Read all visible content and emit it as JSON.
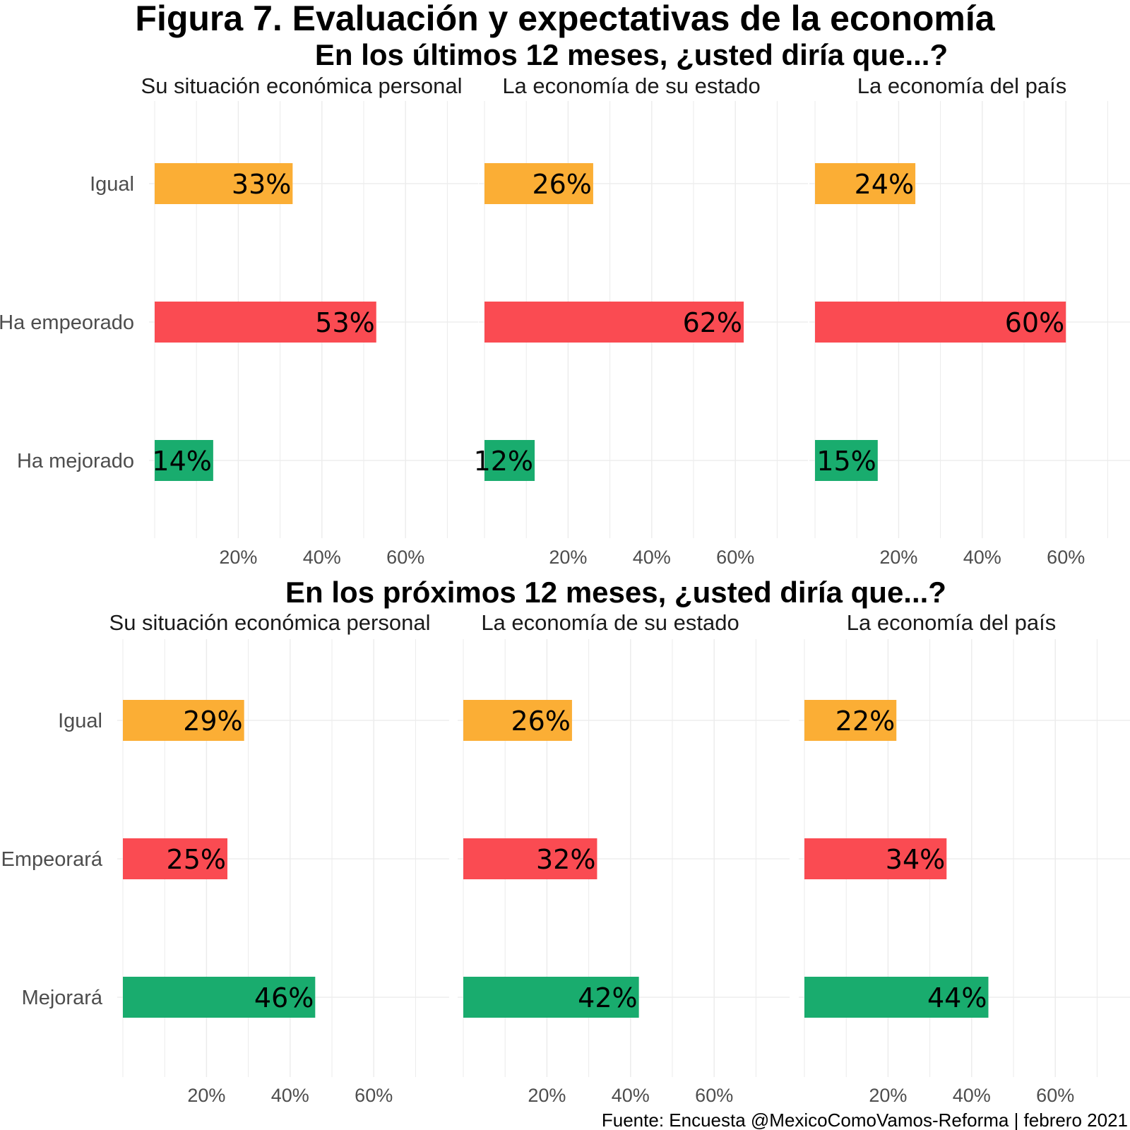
{
  "title": "Figura 7. Evaluación y expectativas de la economía",
  "caption": "Fuente: Encuesta @MexicoComoVamos-Reforma | febrero 2021",
  "colors": {
    "Igual": "#FBAE35",
    "empeora": "#FA4B52",
    "mejora": "#19AC6E",
    "grid": "#ebebeb"
  },
  "chart_data": [
    {
      "type": "bar",
      "orientation": "horizontal",
      "subtitle": "En los últimos 12 meses, ¿usted diría que...?",
      "categories": [
        "Igual",
        "Ha empeorado",
        "Ha mejorado"
      ],
      "xlim": [
        0,
        75
      ],
      "x_ticks": [
        "20%",
        "40%",
        "60%"
      ],
      "grid": true,
      "panels": [
        {
          "name": "Su situación económica personal",
          "values": [
            33,
            53,
            14
          ],
          "labels": [
            "33%",
            "53%",
            "14%"
          ]
        },
        {
          "name": "La economía de su estado",
          "values": [
            26,
            62,
            12
          ],
          "labels": [
            "26%",
            "62%",
            "12%"
          ]
        },
        {
          "name": "La economía del país",
          "values": [
            24,
            60,
            15
          ],
          "labels": [
            "24%",
            "60%",
            "15%"
          ]
        }
      ]
    },
    {
      "type": "bar",
      "orientation": "horizontal",
      "subtitle": "En los próximos 12 meses, ¿usted diría que...?",
      "categories": [
        "Igual",
        "Empeorará",
        "Mejorará"
      ],
      "xlim": [
        0,
        75
      ],
      "x_ticks": [
        "20%",
        "40%",
        "60%"
      ],
      "grid": true,
      "panels": [
        {
          "name": "Su situación económica personal",
          "values": [
            29,
            25,
            46
          ],
          "labels": [
            "29%",
            "25%",
            "46%"
          ]
        },
        {
          "name": "La economía de su estado",
          "values": [
            26,
            32,
            42
          ],
          "labels": [
            "26%",
            "32%",
            "42%"
          ]
        },
        {
          "name": "La economía del país",
          "values": [
            22,
            34,
            44
          ],
          "labels": [
            "22%",
            "34%",
            "44%"
          ]
        }
      ]
    }
  ]
}
